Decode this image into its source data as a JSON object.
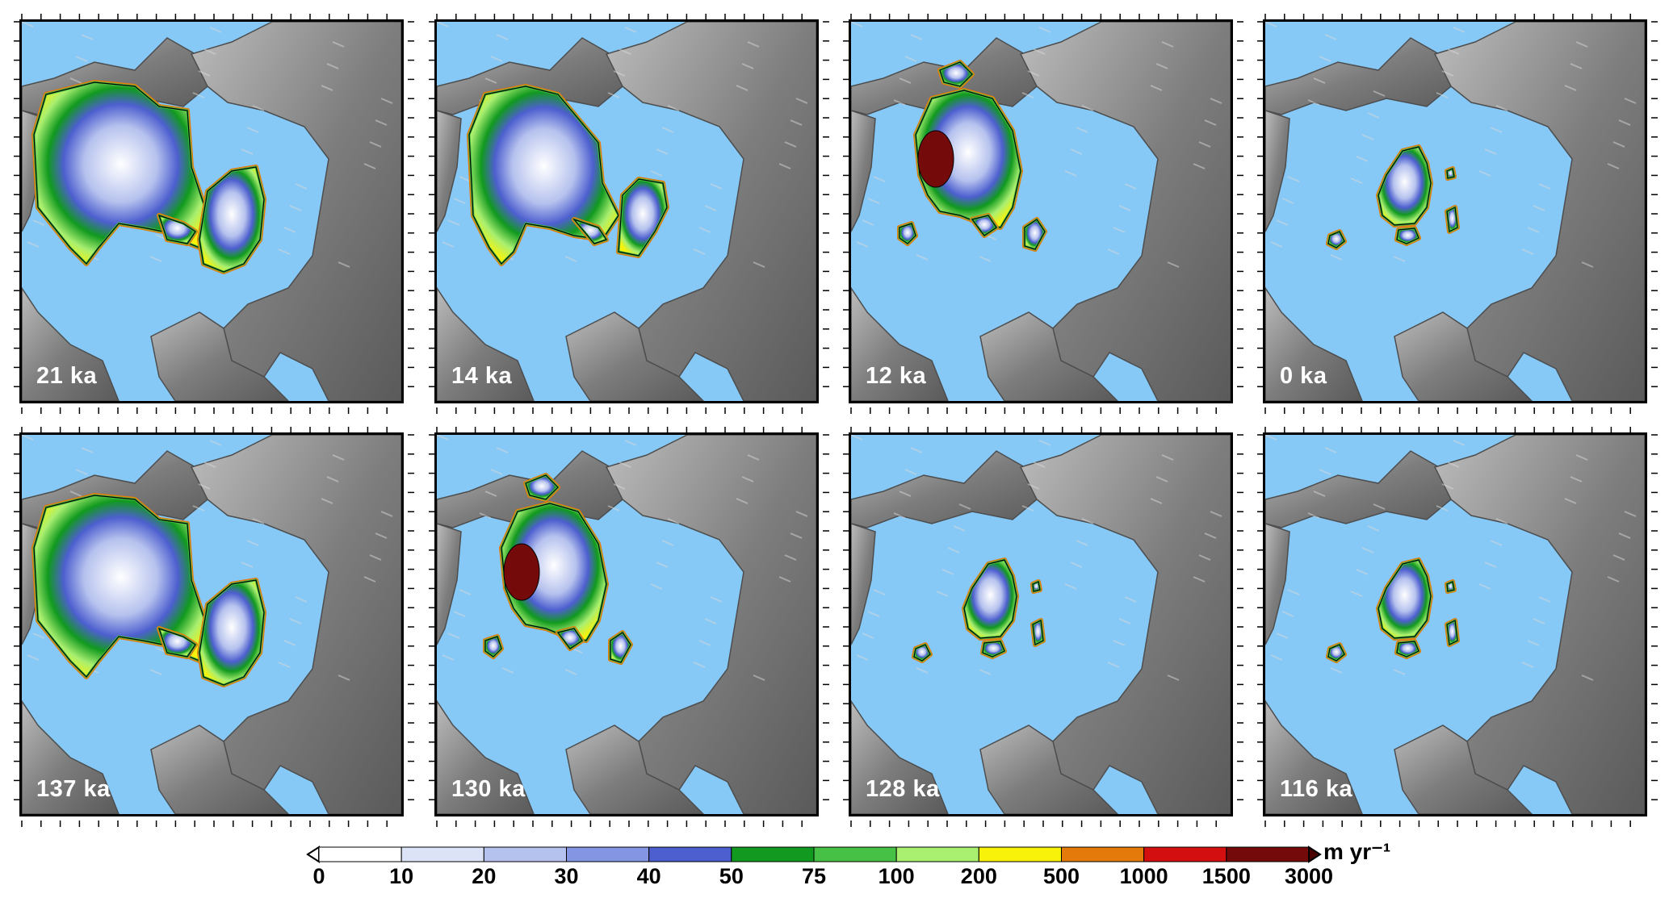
{
  "panels": [
    {
      "label": "21 ka",
      "ice": "large"
    },
    {
      "label": "14 ka",
      "ice": "medium"
    },
    {
      "label": "12 ka",
      "ice": "retreat"
    },
    {
      "label": "0 ka",
      "ice": "small"
    },
    {
      "label": "137 ka",
      "ice": "large"
    },
    {
      "label": "130 ka",
      "ice": "retreat"
    },
    {
      "label": "128 ka",
      "ice": "small"
    },
    {
      "label": "116 ka",
      "ice": "small"
    }
  ],
  "colorbar": {
    "unit": "m yr⁻¹",
    "ticks": [
      "0",
      "10",
      "20",
      "30",
      "40",
      "50",
      "75",
      "100",
      "200",
      "500",
      "1000",
      "1500",
      "3000"
    ],
    "colors": [
      "#ffffff",
      "#dde3f6",
      "#b6c2ee",
      "#8395e3",
      "#4d5fcf",
      "#119a1f",
      "#46c146",
      "#a9ef70",
      "#f8f20a",
      "#e47a0a",
      "#d40f0f",
      "#740a0a"
    ],
    "extend_low_color": "#ffffff",
    "extend_high_color": "#4b0000"
  },
  "colors": {
    "ocean": "#86c9f7",
    "land": "#7d7d7d",
    "land_light": "#bcbcbc",
    "contour": "#000000"
  }
}
